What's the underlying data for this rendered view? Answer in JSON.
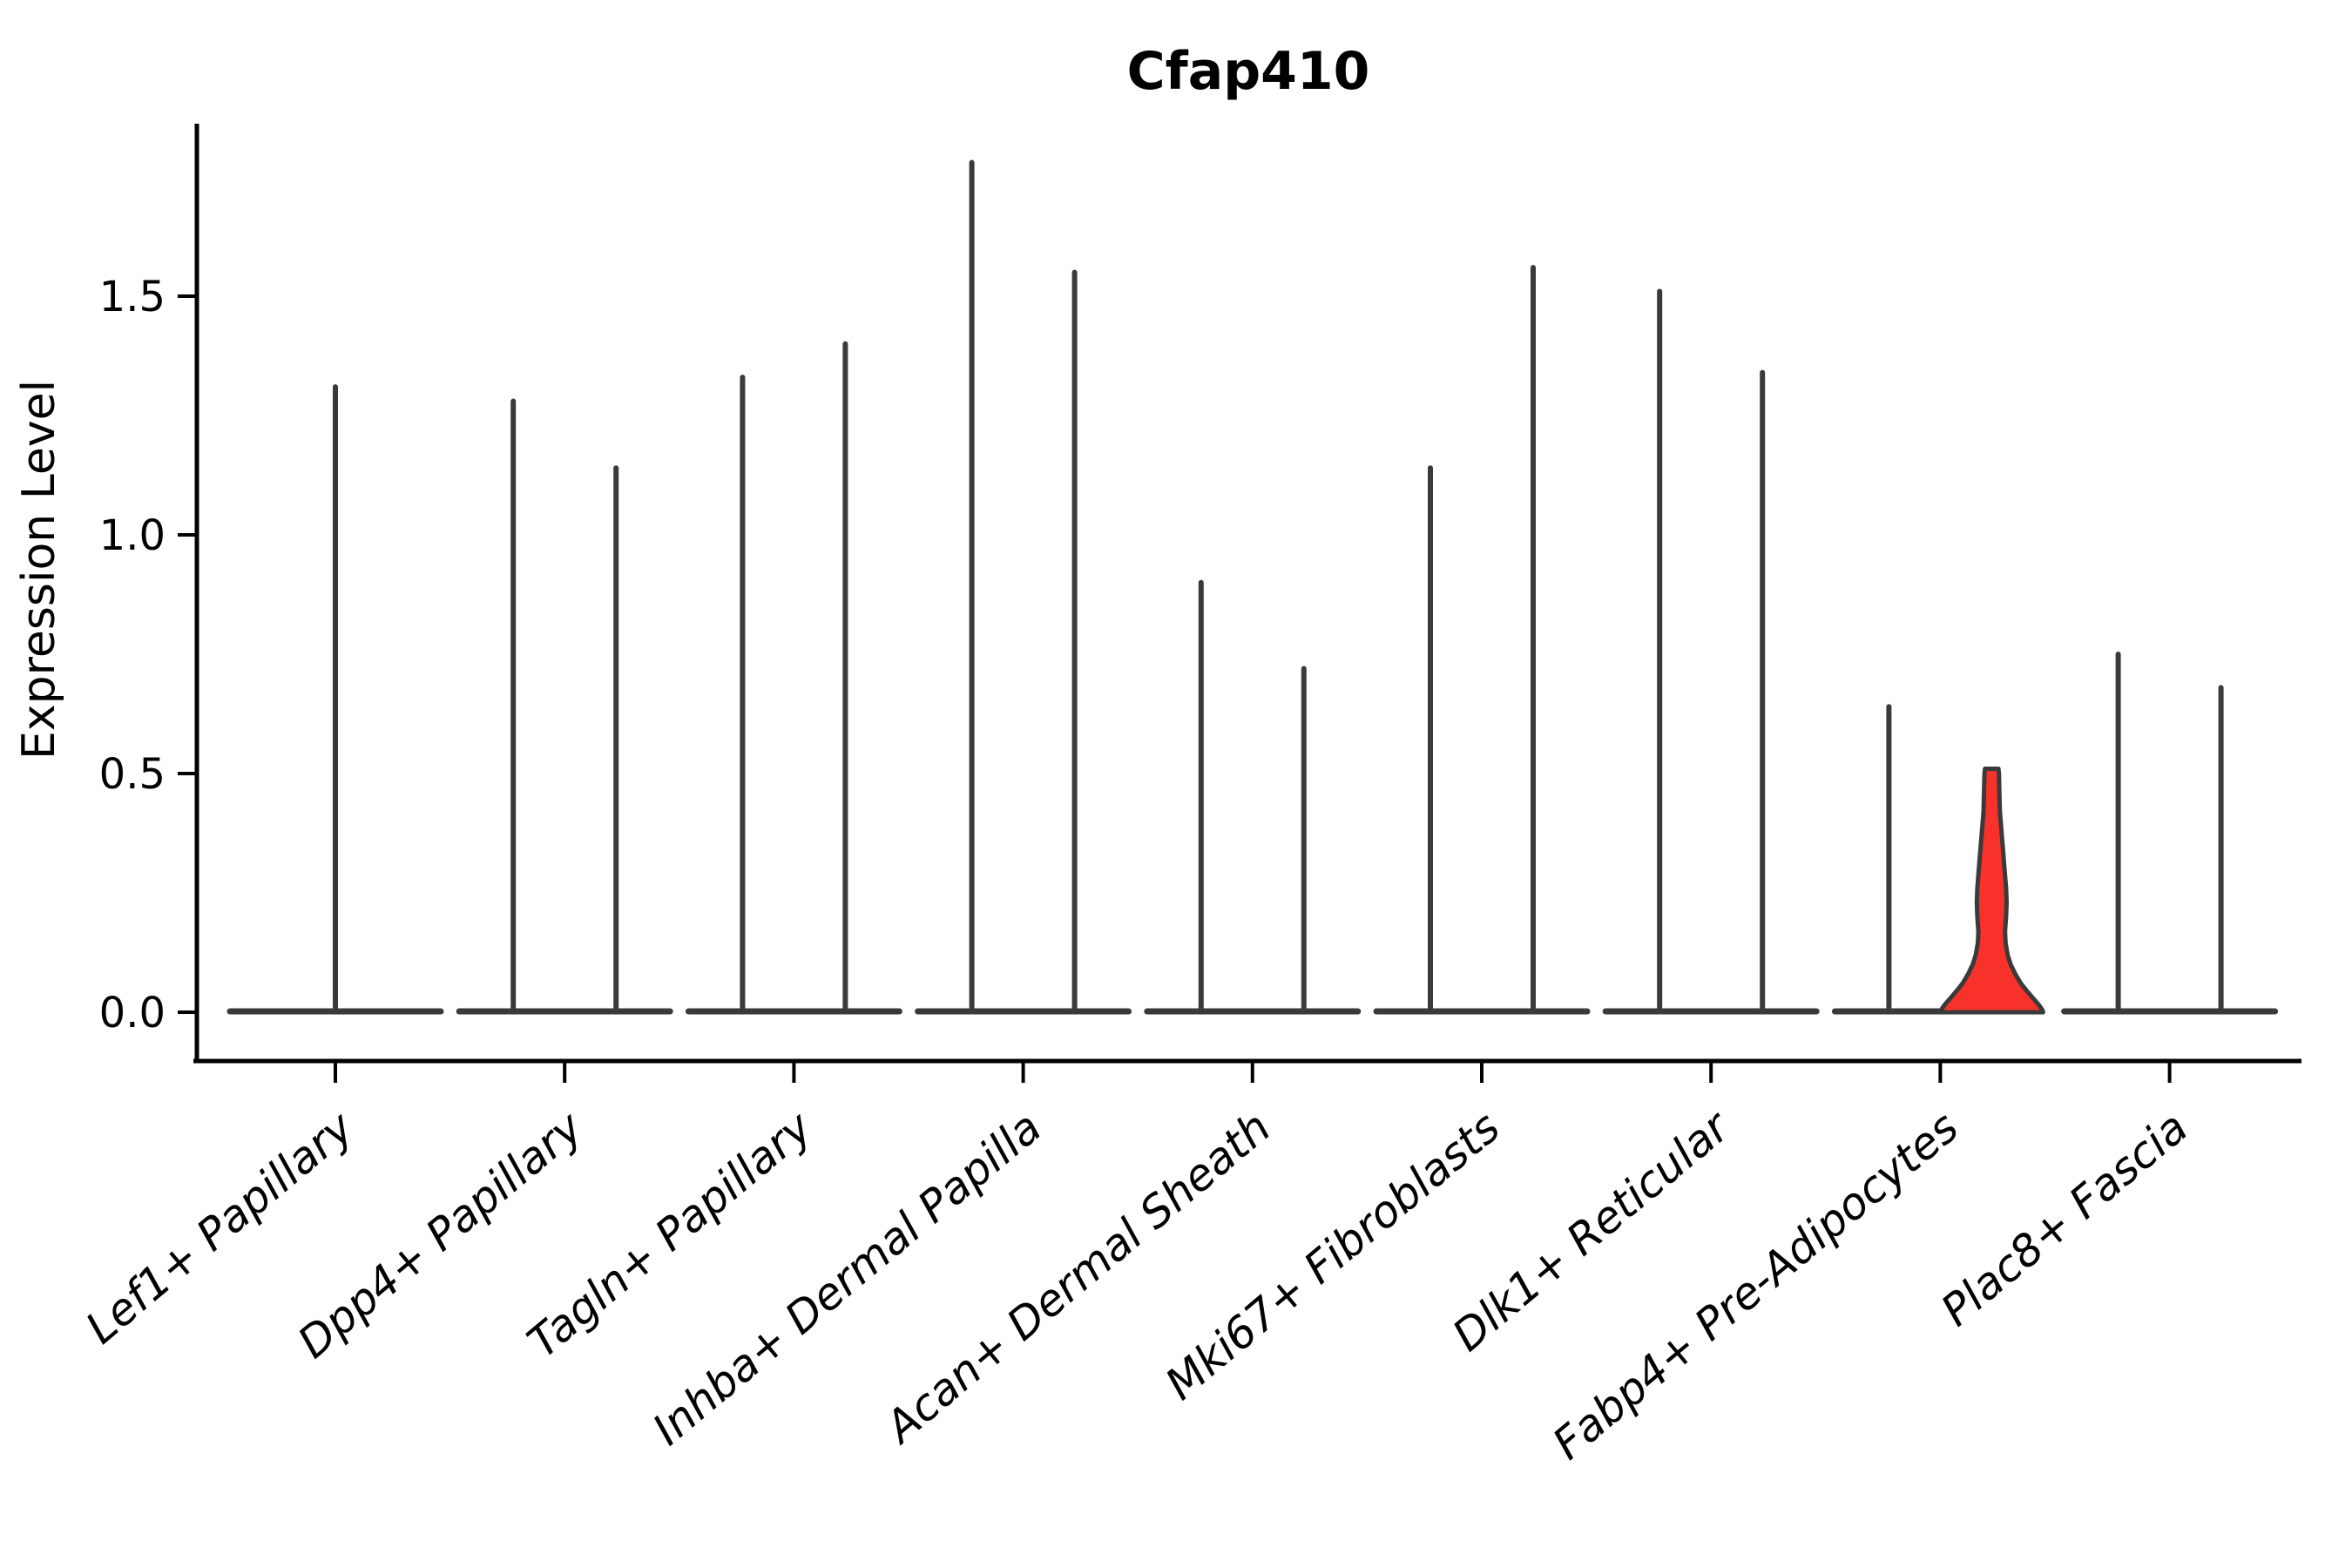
{
  "title": "Cfap410",
  "y_axis": {
    "label": "Expression Level",
    "tick_labels": [
      "0.0",
      "0.5",
      "1.0",
      "1.5"
    ]
  },
  "chart_data": {
    "type": "violin",
    "title": "Cfap410",
    "xlabel": "",
    "ylabel": "Expression Level",
    "ylim": [
      0,
      1.86
    ],
    "yticks": [
      0.0,
      0.5,
      1.0,
      1.5
    ],
    "grid": false,
    "legend": "none",
    "violin_color": "#3a3a3a",
    "axis_color": "#000000",
    "highlight_fill": "#f8312a",
    "categories": [
      "Lef1+ Papillary",
      "Dpp4+ Papillary",
      "Tagln+ Papillary",
      "Inhba+ Dermal Papilla",
      "Acan+ Dermal Sheath",
      "Mki67+ Fibroblasts",
      "Dlk1+ Reticular",
      "Fabp4+ Pre-Adipocytes",
      "Plac8+ Fascia"
    ],
    "groups": [
      {
        "category": "Lef1+ Papillary",
        "violins": [
          {
            "offset": 0,
            "max": 1.31,
            "style": "spike"
          }
        ]
      },
      {
        "category": "Dpp4+ Papillary",
        "violins": [
          {
            "offset": -1,
            "max": 1.28,
            "style": "spike"
          },
          {
            "offset": 1,
            "max": 1.14,
            "style": "spike"
          }
        ]
      },
      {
        "category": "Tagln+ Papillary",
        "violins": [
          {
            "offset": -1,
            "max": 1.33,
            "style": "spike"
          },
          {
            "offset": 1,
            "max": 1.4,
            "style": "spike"
          }
        ]
      },
      {
        "category": "Inhba+ Dermal Papilla",
        "violins": [
          {
            "offset": -1,
            "max": 1.78,
            "style": "spike"
          },
          {
            "offset": 1,
            "max": 1.55,
            "style": "spike"
          }
        ]
      },
      {
        "category": "Acan+ Dermal Sheath",
        "violins": [
          {
            "offset": -1,
            "max": 0.9,
            "style": "spike"
          },
          {
            "offset": 1,
            "max": 0.72,
            "style": "spike"
          }
        ]
      },
      {
        "category": "Mki67+ Fibroblasts",
        "violins": [
          {
            "offset": -1,
            "max": 1.14,
            "style": "spike"
          },
          {
            "offset": 1,
            "max": 1.56,
            "style": "spike"
          }
        ]
      },
      {
        "category": "Dlk1+ Reticular",
        "violins": [
          {
            "offset": -1,
            "max": 1.51,
            "style": "spike"
          },
          {
            "offset": 1,
            "max": 1.34,
            "style": "spike"
          }
        ]
      },
      {
        "category": "Fabp4+ Pre-Adipocytes",
        "violins": [
          {
            "offset": -1,
            "max": 0.64,
            "style": "spike"
          },
          {
            "offset": 1,
            "max": 0.51,
            "style": "filled",
            "profile": [
              [
                0.51,
                0.13
              ],
              [
                0.5,
                0.14
              ],
              [
                0.46,
                0.15
              ],
              [
                0.42,
                0.16
              ],
              [
                0.38,
                0.19
              ],
              [
                0.34,
                0.22
              ],
              [
                0.3,
                0.25
              ],
              [
                0.26,
                0.28
              ],
              [
                0.23,
                0.29
              ],
              [
                0.2,
                0.28
              ],
              [
                0.17,
                0.26
              ],
              [
                0.145,
                0.27
              ],
              [
                0.12,
                0.31
              ],
              [
                0.1,
                0.37
              ],
              [
                0.08,
                0.46
              ],
              [
                0.06,
                0.57
              ],
              [
                0.045,
                0.68
              ],
              [
                0.03,
                0.8
              ],
              [
                0.015,
                0.92
              ],
              [
                0.005,
                0.985
              ],
              [
                0.0,
                1.0
              ]
            ]
          }
        ]
      },
      {
        "category": "Plac8+ Fascia",
        "violins": [
          {
            "offset": -1,
            "max": 0.75,
            "style": "spike"
          },
          {
            "offset": 1,
            "max": 0.68,
            "style": "spike"
          }
        ]
      }
    ]
  }
}
